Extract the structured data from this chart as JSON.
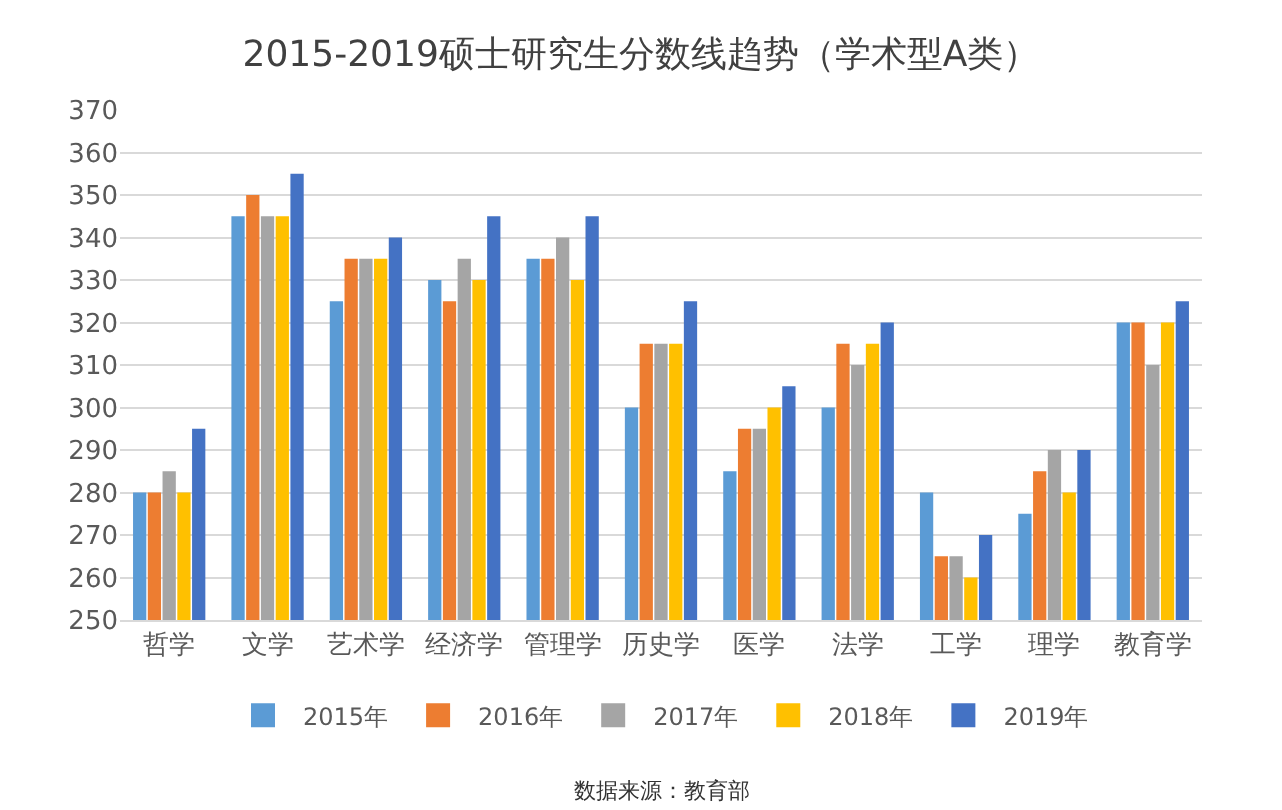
{
  "chart_data": {
    "type": "bar",
    "title": "2015-2019硕士研究生分数线趋势（学术型A类）",
    "categories": [
      "哲学",
      "文学",
      "艺术学",
      "经济学",
      "管理学",
      "历史学",
      "医学",
      "法学",
      "工学",
      "理学",
      "教育学"
    ],
    "series": [
      {
        "name": "2015年",
        "color": "#5b9bd5",
        "values": [
          280,
          345,
          325,
          330,
          335,
          300,
          285,
          300,
          280,
          275,
          320
        ]
      },
      {
        "name": "2016年",
        "color": "#ed7d31",
        "values": [
          280,
          350,
          335,
          325,
          335,
          315,
          295,
          315,
          265,
          285,
          320
        ]
      },
      {
        "name": "2017年",
        "color": "#a5a5a5",
        "values": [
          285,
          345,
          335,
          335,
          340,
          315,
          295,
          310,
          265,
          290,
          310
        ]
      },
      {
        "name": "2018年",
        "color": "#ffc000",
        "values": [
          280,
          345,
          335,
          330,
          330,
          315,
          300,
          315,
          260,
          280,
          320
        ]
      },
      {
        "name": "2019年",
        "color": "#4472c4",
        "values": [
          295,
          355,
          340,
          345,
          345,
          325,
          305,
          320,
          270,
          290,
          325
        ]
      }
    ],
    "ylim": [
      250,
      370
    ],
    "yticks": [
      250,
      260,
      270,
      280,
      290,
      300,
      310,
      320,
      330,
      340,
      350,
      360,
      370
    ],
    "grid": "y",
    "legend": "bottom",
    "annotations": [
      "数据来源：教育部"
    ]
  }
}
